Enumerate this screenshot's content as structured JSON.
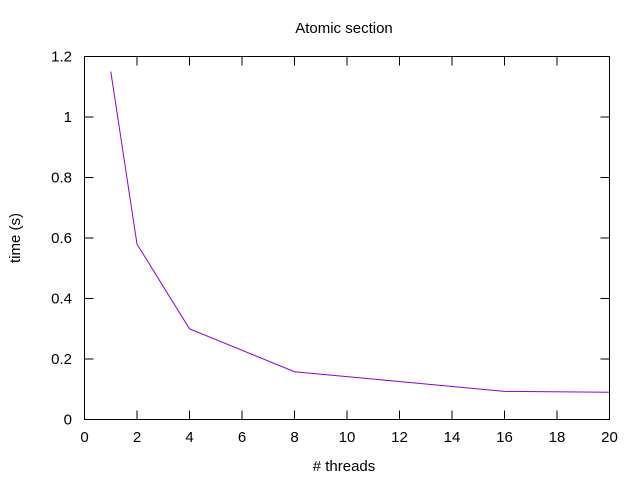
{
  "chart_data": {
    "type": "line",
    "title": "Atomic section",
    "xlabel": "# threads",
    "ylabel": "time (s)",
    "xlim": [
      0,
      20
    ],
    "ylim": [
      0,
      1.2
    ],
    "xticks": [
      0,
      2,
      4,
      6,
      8,
      10,
      12,
      14,
      16,
      18,
      20
    ],
    "yticks": [
      0,
      0.2,
      0.4,
      0.6,
      0.8,
      1,
      1.2
    ],
    "xtick_labels": [
      "0",
      "2",
      "4",
      "6",
      "8",
      "10",
      "12",
      "14",
      "16",
      "18",
      "20"
    ],
    "ytick_labels": [
      "0",
      "0.2",
      "0.4",
      "0.6",
      "0.8",
      "1",
      "1.2"
    ],
    "grid": false,
    "legend": "none",
    "series": [
      {
        "color": "#9400d3",
        "x": [
          1,
          2,
          4,
          8,
          16,
          20
        ],
        "y": [
          1.15,
          0.58,
          0.3,
          0.158,
          0.093,
          0.09
        ]
      }
    ]
  }
}
